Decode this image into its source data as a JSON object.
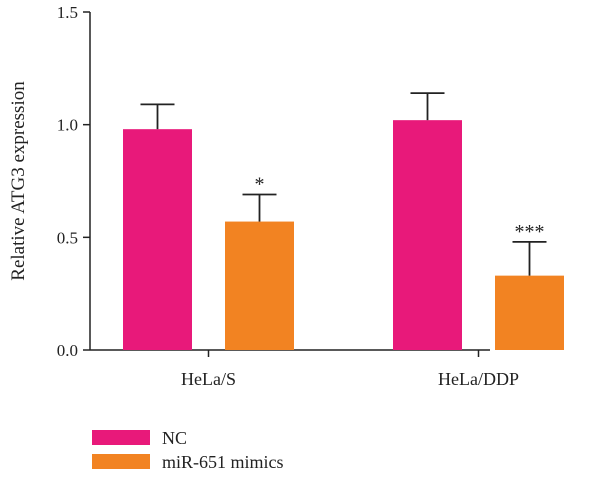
{
  "chart_data": {
    "type": "bar",
    "title": "",
    "xlabel": "",
    "ylabel": "Relative ATG3 expression",
    "ylim": [
      0,
      1.5
    ],
    "yticks": [
      "0.0",
      "0.5",
      "1.0",
      "1.5"
    ],
    "categories": [
      "HeLa/S",
      "HeLa/DDP"
    ],
    "series": [
      {
        "name": "NC",
        "color": "#e8197a",
        "values": [
          0.98,
          1.02
        ],
        "errors": [
          0.11,
          0.12
        ]
      },
      {
        "name": "miR-651 mimics",
        "color": "#f28322",
        "values": [
          0.57,
          0.33
        ],
        "errors": [
          0.12,
          0.15
        ]
      }
    ],
    "annotations": [
      {
        "category": 0,
        "series": 1,
        "text": "*"
      },
      {
        "category": 1,
        "series": 1,
        "text": "***"
      }
    ],
    "legend": "bottom-left",
    "grid": false
  }
}
